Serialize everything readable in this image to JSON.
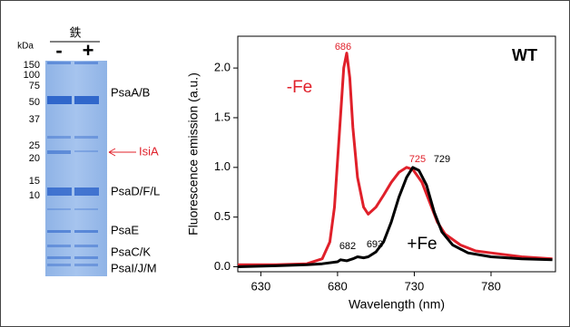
{
  "gel": {
    "header": "鉄",
    "lanes": [
      "-",
      "+"
    ],
    "kda_label": "kDa",
    "markers": [
      150,
      100,
      75,
      50,
      37,
      25,
      20,
      15,
      10
    ],
    "bands": [
      {
        "label": "PsaA/B",
        "color": "#000000"
      },
      {
        "label": "IsiA",
        "color": "#e0202a"
      },
      {
        "label": "PsaD/F/L",
        "color": "#000000"
      },
      {
        "label": "PsaE",
        "color": "#000000"
      },
      {
        "label": "PsaC/K",
        "color": "#000000"
      },
      {
        "label": "PsaI/J/M",
        "color": "#000000"
      }
    ]
  },
  "chart_data": {
    "type": "line",
    "title": "WT",
    "x_label": "Wavelength (nm)",
    "y_label": "Fluorescence emission (a.u.)",
    "xlim": [
      615,
      822
    ],
    "ylim": [
      -0.05,
      2.32
    ],
    "xticks": [
      630,
      680,
      730,
      780
    ],
    "yticks": [
      {
        "value": 0,
        "label": "0.0"
      },
      0.5,
      {
        "value": 1,
        "label": "1.0"
      },
      1.5,
      {
        "value": 2,
        "label": "2.0"
      }
    ],
    "grid": false,
    "series": [
      {
        "name": "-Fe",
        "color": "#e0202a",
        "x": [
          615,
          640,
          660,
          670,
          675,
          678,
          681,
          684,
          686,
          688,
          690,
          693,
          697,
          700,
          705,
          710,
          715,
          720,
          725,
          729,
          735,
          740,
          745,
          750,
          760,
          770,
          780,
          800,
          820
        ],
        "values": [
          0.02,
          0.02,
          0.03,
          0.08,
          0.25,
          0.6,
          1.3,
          2.0,
          2.15,
          1.9,
          1.4,
          0.9,
          0.6,
          0.53,
          0.6,
          0.72,
          0.85,
          0.95,
          1.0,
          0.98,
          0.85,
          0.65,
          0.45,
          0.33,
          0.22,
          0.16,
          0.14,
          0.1,
          0.08
        ]
      },
      {
        "name": "+Fe",
        "color": "#000000",
        "x": [
          615,
          640,
          660,
          670,
          680,
          682,
          686,
          690,
          693,
          697,
          700,
          705,
          710,
          715,
          720,
          725,
          729,
          733,
          738,
          743,
          748,
          755,
          765,
          780,
          800,
          820
        ],
        "values": [
          0.0,
          0.01,
          0.02,
          0.03,
          0.05,
          0.07,
          0.06,
          0.08,
          0.1,
          0.09,
          0.1,
          0.15,
          0.25,
          0.45,
          0.7,
          0.9,
          1.0,
          0.97,
          0.82,
          0.55,
          0.35,
          0.22,
          0.14,
          0.1,
          0.08,
          0.07
        ]
      }
    ],
    "annotations": [
      {
        "text": "686",
        "color": "#e0202a"
      },
      {
        "text": "725",
        "color": "#e0202a"
      },
      {
        "text": "729",
        "color": "#000000"
      },
      {
        "text": "682",
        "color": "#000000"
      },
      {
        "text": "693",
        "color": "#000000"
      }
    ]
  }
}
